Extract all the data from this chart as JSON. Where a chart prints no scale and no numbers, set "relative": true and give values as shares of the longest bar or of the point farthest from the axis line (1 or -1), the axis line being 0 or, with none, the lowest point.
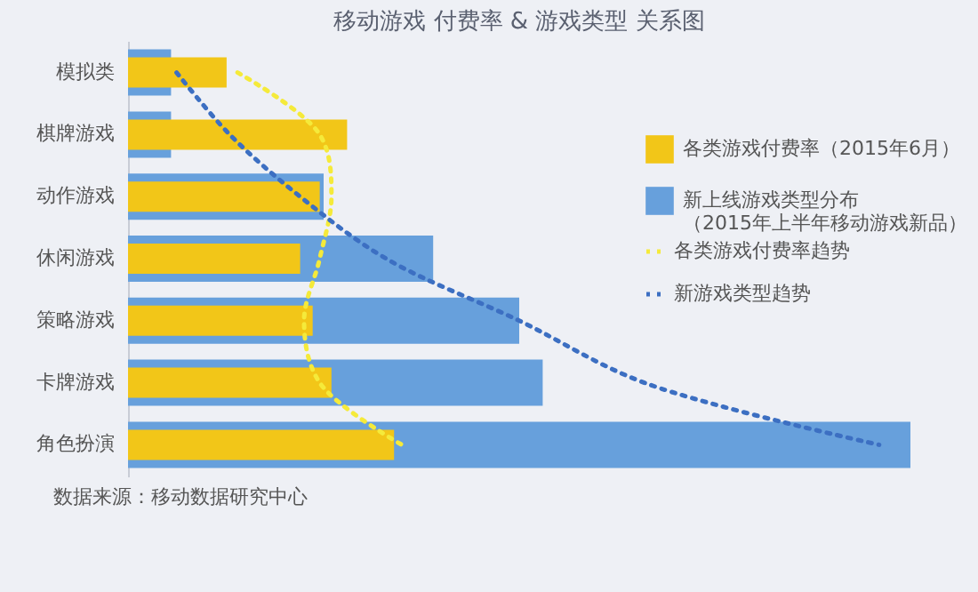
{
  "chart_data": {
    "type": "bar",
    "orientation": "horizontal",
    "relative": true,
    "title": "移动游戏 付费率 & 游戏类型 关系图",
    "categories": [
      "模拟类",
      "棋牌游戏",
      "动作游戏",
      "休闲游戏",
      "策略游戏",
      "卡牌游戏",
      "角色扮演"
    ],
    "series": [
      {
        "name": "各类游戏付费率（2015年6月）",
        "color": "#f2c618",
        "values": [
          0.126,
          0.28,
          0.245,
          0.22,
          0.236,
          0.26,
          0.34
        ]
      },
      {
        "name": "新上线游戏类型分布（2015年上半年移动游戏新品）",
        "color": "#67a0dc",
        "values": [
          0.055,
          0.055,
          0.25,
          0.39,
          0.5,
          0.53,
          1
        ]
      },
      {
        "name": "各类游戏付费率趋势",
        "type": "line",
        "line_style": "dotted",
        "color": "#f5ea3a",
        "values": [
          0.14,
          0.245,
          0.26,
          0.245,
          0.225,
          0.245,
          0.35
        ]
      },
      {
        "name": "新游戏类型趋势",
        "type": "line",
        "line_style": "dotted",
        "color": "#3c6fc2",
        "values": [
          0.062,
          0.13,
          0.22,
          0.33,
          0.5,
          0.66,
          0.96
        ]
      }
    ],
    "legend": "right",
    "annotations": [
      "数据来源：移动数据研究中心"
    ]
  }
}
